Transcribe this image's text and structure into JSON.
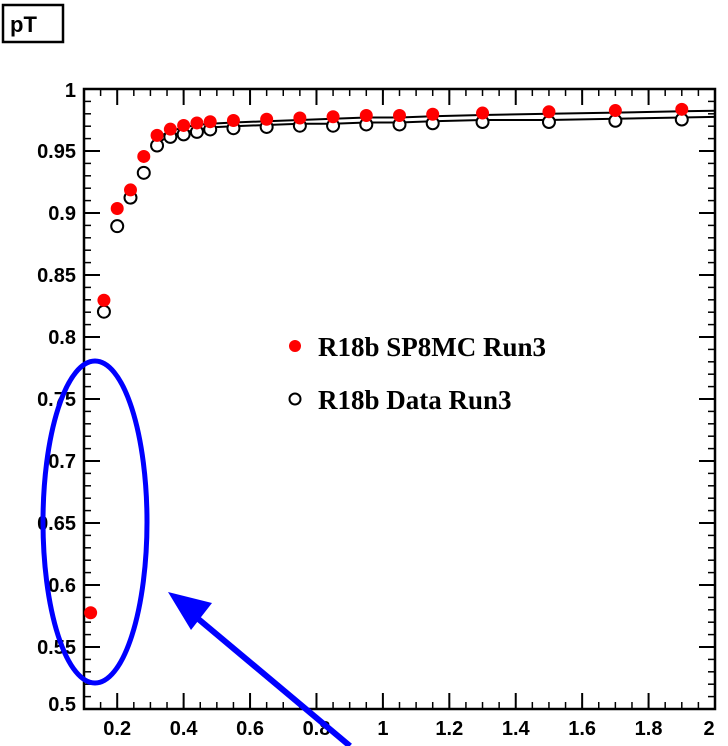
{
  "chart_data": {
    "type": "scatter",
    "title": "pT",
    "xlim": [
      0.1,
      2.0
    ],
    "ylim": [
      0.5,
      1.0
    ],
    "xticks": [
      0.2,
      0.4,
      0.6,
      0.8,
      1.0,
      1.2,
      1.4,
      1.6,
      1.8,
      2.0
    ],
    "xtick_labels": [
      "0.2",
      "0.4",
      "0.6",
      "0.8",
      "1",
      "1.2",
      "1.4",
      "1.6",
      "1.8",
      "2"
    ],
    "yticks": [
      0.5,
      0.55,
      0.6,
      0.65,
      0.7,
      0.75,
      0.8,
      0.85,
      0.9,
      0.95,
      1.0
    ],
    "ytick_labels": [
      "0.5",
      "0.55",
      "0.6",
      "0.65",
      "0.7",
      "0.75",
      "0.8",
      "0.85",
      "0.9",
      "0.95",
      "1"
    ],
    "grid": false,
    "legend_position": "middle-right",
    "series": [
      {
        "name": "R18b SP8MC Run3",
        "marker": "filled-circle",
        "color": "#ff0000",
        "x": [
          0.12,
          0.16,
          0.2,
          0.24,
          0.28,
          0.32,
          0.36,
          0.4,
          0.44,
          0.48,
          0.55,
          0.65,
          0.75,
          0.85,
          0.95,
          1.05,
          1.15,
          1.3,
          1.5,
          1.7,
          1.9
        ],
        "y": [
          0.576,
          0.828,
          0.902,
          0.917,
          0.944,
          0.961,
          0.966,
          0.969,
          0.971,
          0.972,
          0.973,
          0.974,
          0.975,
          0.976,
          0.977,
          0.977,
          0.978,
          0.979,
          0.98,
          0.981,
          0.982
        ]
      },
      {
        "name": "R18b Data Run3",
        "marker": "open-circle",
        "color": "#000000",
        "x": [
          0.16,
          0.2,
          0.24,
          0.28,
          0.32,
          0.36,
          0.4,
          0.44,
          0.48,
          0.55,
          0.65,
          0.75,
          0.85,
          0.95,
          1.05,
          1.15,
          1.3,
          1.5,
          1.7,
          1.9
        ],
        "y": [
          0.822,
          0.891,
          0.914,
          0.934,
          0.956,
          0.963,
          0.965,
          0.967,
          0.969,
          0.97,
          0.971,
          0.972,
          0.972,
          0.973,
          0.973,
          0.974,
          0.975,
          0.975,
          0.976,
          0.977
        ]
      }
    ]
  },
  "annotations": {
    "highlight_ellipse_color": "#0000ff",
    "arrow_color": "#0000ff"
  }
}
